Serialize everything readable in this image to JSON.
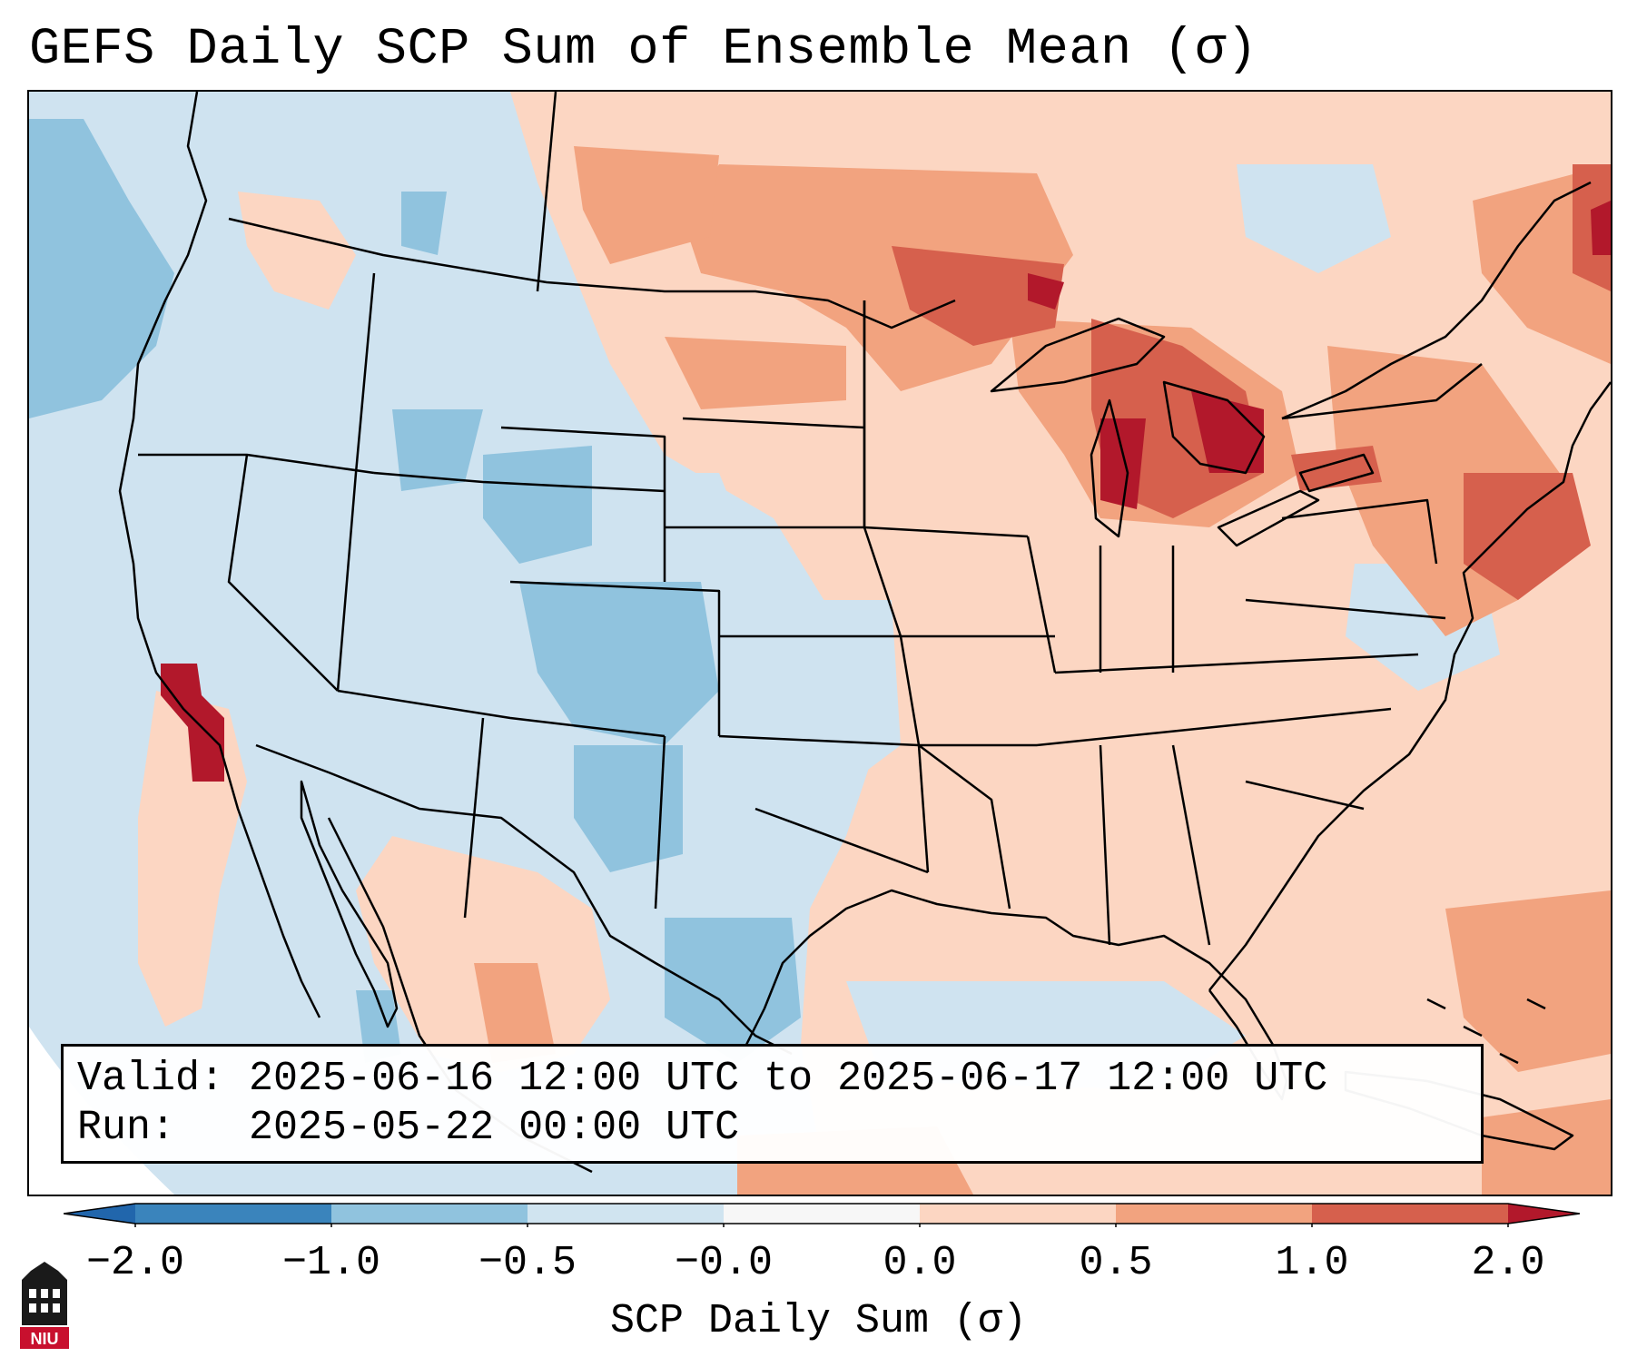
{
  "title": "GEFS Daily SCP Sum of Ensemble Mean (σ)",
  "info": {
    "valid_label": "Valid:",
    "valid_text": "2025-06-16 12:00 UTC to 2025-06-17 12:00 UTC",
    "run_label": "Run:",
    "run_text": "2025-05-22 00:00 UTC"
  },
  "colorbar": {
    "title": "SCP Daily Sum (σ)",
    "tick_labels": [
      "−2.0",
      "−1.0",
      "−0.5",
      "−0.0",
      "0.0",
      "0.5",
      "1.0",
      "2.0"
    ],
    "bins": [
      {
        "color": "#3a84bc"
      },
      {
        "color": "#90c3de"
      },
      {
        "color": "#d0e4f0"
      },
      {
        "color": "#f7f7f7"
      },
      {
        "color": "#fcd6c2"
      },
      {
        "color": "#f2a37f"
      },
      {
        "color": "#d6604d"
      }
    ],
    "under_color": "#2166ac",
    "over_color": "#b2182b"
  },
  "logo": {
    "text": "NIU"
  },
  "colors": {
    "background_ocean": "#cfe3f0",
    "negative_strong": "#90c3de",
    "positive_weak": "#fcd6c2",
    "positive_medium": "#f2a37f",
    "positive_strong": "#d6604d",
    "positive_extreme": "#b2182b"
  }
}
